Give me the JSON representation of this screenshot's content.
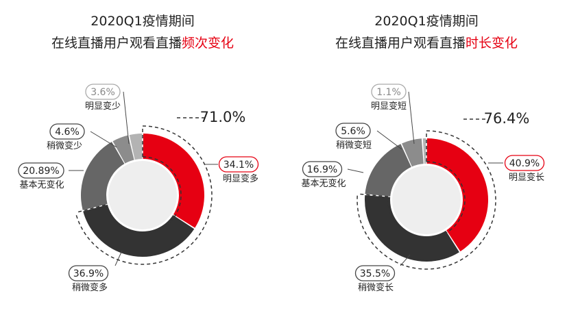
{
  "colors": {
    "red": "#e60012",
    "dark": "#333333",
    "mid": "#666666",
    "light": "#8c8c8c",
    "pale": "#b3b3b3",
    "center": "#eeeeee",
    "dash": "#333333"
  },
  "chart_data": [
    {
      "type": "donut",
      "title_line1": "2020Q1疫情期间",
      "title_line2_prefix": "在线直播用户观看直播",
      "title_line2_highlight": "频次变化",
      "group_label": "71.0%",
      "slices": [
        {
          "name": "明显变多",
          "value": 34.1,
          "label": "34.1%",
          "color": "red"
        },
        {
          "name": "稍微变多",
          "value": 36.9,
          "label": "36.9%",
          "color": "dark"
        },
        {
          "name": "基本无变化",
          "value": 20.89,
          "label": "20.89%",
          "color": "mid"
        },
        {
          "name": "稍微变少",
          "value": 4.6,
          "label": "4.6%",
          "color": "light"
        },
        {
          "name": "明显变少",
          "value": 3.6,
          "label": "3.6%",
          "color": "pale"
        }
      ]
    },
    {
      "type": "donut",
      "title_line1": "2020Q1疫情期间",
      "title_line2_prefix": "在线直播用户观看直播",
      "title_line2_highlight": "时长变化",
      "group_label": "76.4%",
      "slices": [
        {
          "name": "明显变长",
          "value": 40.9,
          "label": "40.9%",
          "color": "red"
        },
        {
          "name": "稍微变长",
          "value": 35.5,
          "label": "35.5%",
          "color": "dark"
        },
        {
          "name": "基本无变化",
          "value": 16.9,
          "label": "16.9%",
          "color": "mid"
        },
        {
          "name": "稍微变短",
          "value": 5.6,
          "label": "5.6%",
          "color": "light"
        },
        {
          "name": "明显变短",
          "value": 1.1,
          "label": "1.1%",
          "color": "pale"
        }
      ]
    }
  ]
}
